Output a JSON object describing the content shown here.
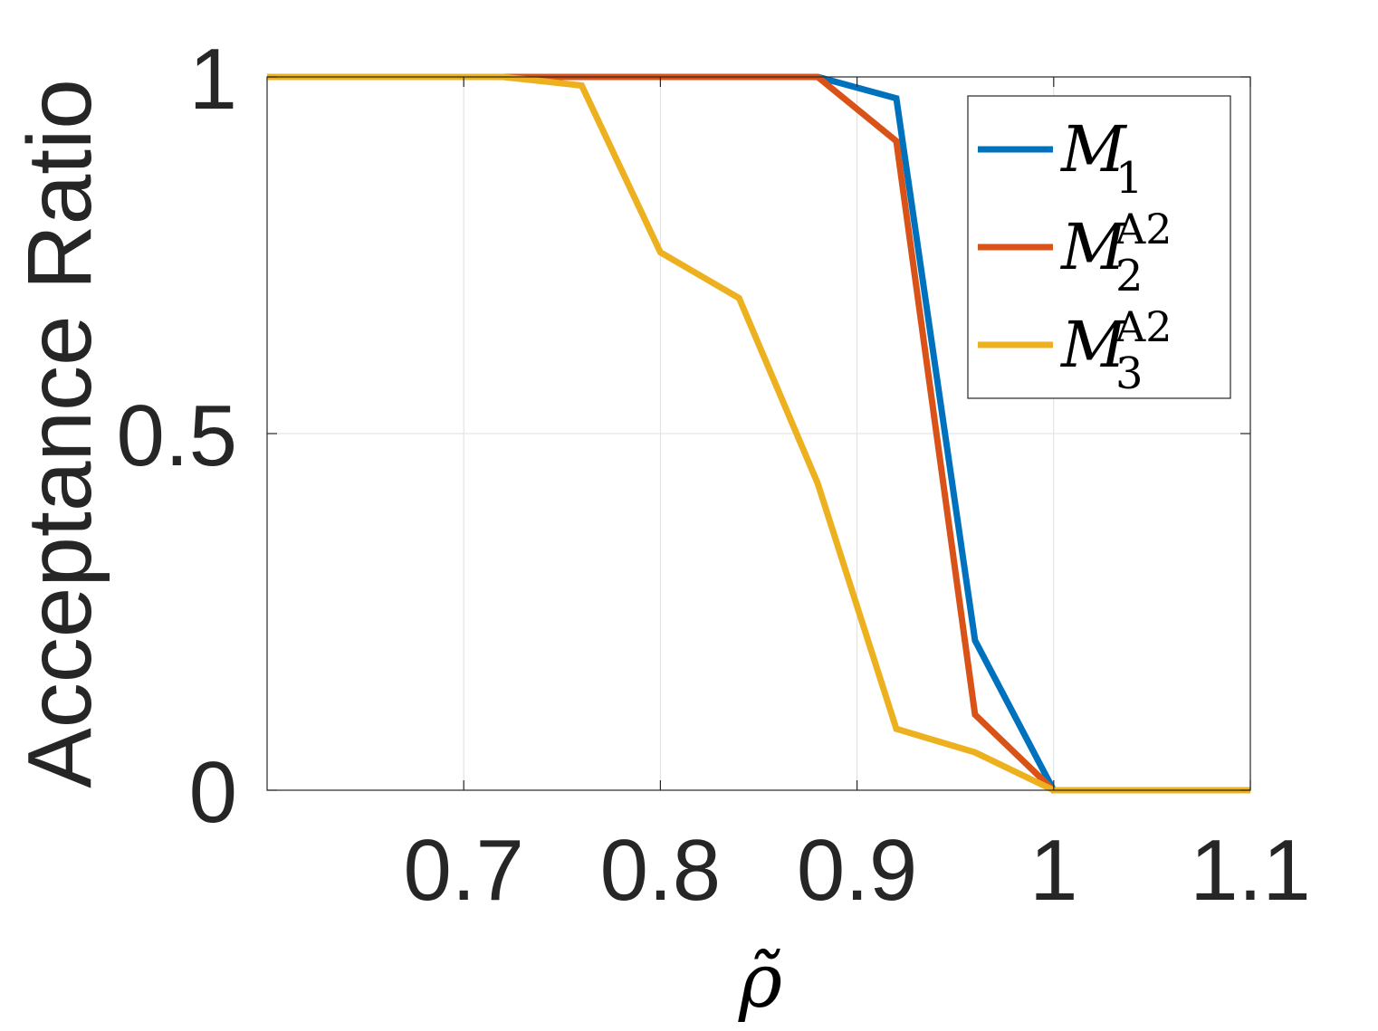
{
  "chart_data": {
    "type": "line",
    "title": "",
    "xlabel": "ρ̃",
    "ylabel": "Acceptance Ratio",
    "xlim": [
      0.6,
      1.1
    ],
    "ylim": [
      0,
      1
    ],
    "xticks": [
      0.7,
      0.8,
      0.9,
      1,
      1.1
    ],
    "xtick_labels": [
      "0.7",
      "0.8",
      "0.9",
      "1",
      "1.1"
    ],
    "yticks": [
      0,
      0.5,
      1
    ],
    "ytick_labels": [
      "0",
      "0.5",
      "1"
    ],
    "grid": true,
    "legend_position": "top-right",
    "series": [
      {
        "name": "M1",
        "label_base": "M",
        "label_sub": "1",
        "label_sup": "",
        "color": "#0072BD",
        "x": [
          0.6,
          0.64,
          0.68,
          0.72,
          0.76,
          0.8,
          0.84,
          0.88,
          0.92,
          0.96,
          1.0,
          1.04,
          1.08,
          1.1
        ],
        "y": [
          1,
          1,
          1,
          1,
          1,
          1,
          1,
          1,
          0.97,
          0.21,
          0,
          0,
          0,
          0
        ]
      },
      {
        "name": "M2A2",
        "label_base": "M",
        "label_sub": "2",
        "label_sup": "A2",
        "color": "#D95319",
        "x": [
          0.6,
          0.64,
          0.68,
          0.72,
          0.76,
          0.8,
          0.84,
          0.88,
          0.92,
          0.96,
          1.0,
          1.04,
          1.08,
          1.1
        ],
        "y": [
          1,
          1,
          1,
          1,
          1,
          1,
          1,
          1,
          0.91,
          0.106,
          0,
          0,
          0,
          0
        ]
      },
      {
        "name": "M3A2",
        "label_base": "M",
        "label_sub": "3",
        "label_sup": "A2",
        "color": "#EDB120",
        "x": [
          0.6,
          0.64,
          0.68,
          0.72,
          0.76,
          0.8,
          0.84,
          0.88,
          0.92,
          0.96,
          1.0,
          1.04,
          1.08,
          1.1
        ],
        "y": [
          1,
          1,
          1,
          1,
          0.988,
          0.754,
          0.69,
          0.43,
          0.086,
          0.053,
          0,
          0,
          0,
          0
        ]
      }
    ]
  }
}
